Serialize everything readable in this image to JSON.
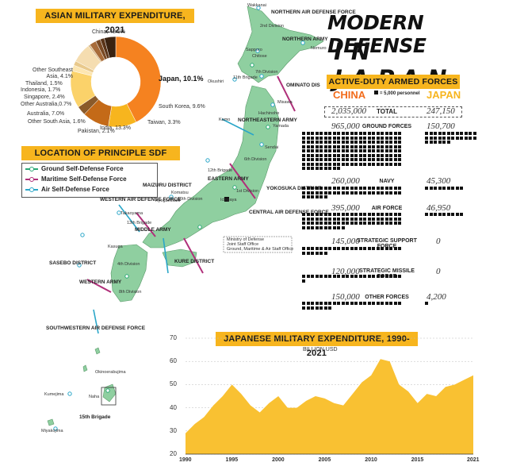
{
  "title": {
    "line1": "MODERN DEFENSE",
    "line2": "IN JAPAN"
  },
  "asian_expenditure": {
    "header": "ASIAN MILITARY EXPENDITURE, 2021",
    "labels": [
      {
        "text": "China, 42.5%",
        "color": "#f58220"
      },
      {
        "text": "Japan, 10.1%",
        "color": "#f7b51e"
      },
      {
        "text": "South Korea, 9.6%",
        "color": "#c46a18"
      },
      {
        "text": "Taiwan, 3.3%",
        "color": "#8a5a2a"
      },
      {
        "text": "India, 13.3%",
        "color": "#fbd26a"
      },
      {
        "text": "Pakistan, 2.1%",
        "color": "#fde6b0"
      },
      {
        "text": "Other South Asia, 1.6%",
        "color": "#e9c98c"
      },
      {
        "text": "Australia, 7.0%",
        "color": "#f5ddb0"
      },
      {
        "text": "Other Australia,0.7%",
        "color": "#d9b98a"
      },
      {
        "text": "Singapore, 2.4%",
        "color": "#a86c3a"
      },
      {
        "text": "Indonesia, 1.7%",
        "color": "#7a4a24"
      },
      {
        "text": "Thailand, 1.5%",
        "color": "#5a3418"
      },
      {
        "text": "Other Southeast Asia, 4.1%",
        "color": "#3a2210"
      }
    ]
  },
  "sdf": {
    "header": "LOCATION OF PRINCIPLE SDF UNITS",
    "legend": [
      {
        "label": "Ground Self-Defense Force",
        "color": "#2aa876"
      },
      {
        "label": "Maritime Self-Defense Force",
        "color": "#b0307a"
      },
      {
        "label": "Air Self-Defense Force",
        "color": "#2aa6c8"
      }
    ],
    "map_labels": {
      "northern_air": "NORTHERN AIR DEFENSE FORCE",
      "northern_army": "NORTHERN ARMY",
      "ominato": "OMINATO DIS",
      "northeastern_army": "NORTHEASTERN ARMY",
      "eastern_army": "EASTERN ARMY",
      "yokosuka": "YOKOSUKA DISTRICT",
      "central_air": "CENTRAL AIR DEFENSE FORCE",
      "maizuru": "MAIZURU DISTRICT",
      "western_air": "WESTERN AIR DEFENSE FORCE",
      "middle_army": "MIDDLE ARMY",
      "kure": "KURE DISTRICT",
      "sasebo": "SASEBO DISTRICT",
      "western_army": "WESTERN ARMY",
      "southwestern_air": "SOUTHWESTERN AIR DEFENSE FORCE",
      "brigade15": "15th Brigade",
      "hq_note1": "Ministry of Defense",
      "hq_note2": "Joint Staff Office",
      "hq_note3": "Ground, Maritime & Air Staff Office"
    },
    "places": [
      "Wakkanai",
      "2nd Division",
      "Nemuro",
      "Sapporo",
      "Chitose",
      "7th Division",
      "Okushiri",
      "11th Brigade",
      "Misawa",
      "Hachinohe",
      "Kamo",
      "Yamada",
      "Sendai",
      "6th Division",
      "12th Brigade",
      "1st Division",
      "Ichigaya",
      "Komatsu",
      "10th Division",
      "Kyogamisaki",
      "Takaoyama",
      "13th Brigade",
      "Kasuga",
      "4th Division",
      "8th Division",
      "Naha",
      "Okinoerabujima",
      "Kumejima",
      "Miyakojima"
    ]
  },
  "forces": {
    "header": "ACTIVE-DUTY ARMED FORCES",
    "legend": "= 5,000 personnel",
    "china_label": "CHINA",
    "japan_label": "JAPAN",
    "rows": [
      {
        "label": "TOTAL",
        "china": "2,035,000",
        "japan": "247,150"
      },
      {
        "label": "GROUND FORCES",
        "china": "965,000",
        "japan": "150,700"
      },
      {
        "label": "NAVY",
        "china": "260,000",
        "japan": "45,300"
      },
      {
        "label": "AIR FORCE",
        "china": "395,000",
        "japan": "46,950"
      },
      {
        "label": "STRATEGIC SUPPORT FORCE",
        "china": "145,000",
        "japan": "0"
      },
      {
        "label": "STRATEGIC MISSILE FORCE",
        "china": "120,000",
        "japan": "0"
      },
      {
        "label": "OTHER FORCES",
        "china": "150,000",
        "japan": "4,200"
      }
    ]
  },
  "chart_data": [
    {
      "type": "pie",
      "title": "ASIAN MILITARY EXPENDITURE, 2021",
      "categories": [
        "China",
        "Japan",
        "South Korea",
        "Taiwan",
        "India",
        "Pakistan",
        "Other South Asia",
        "Australia",
        "Other Australia",
        "Singapore",
        "Indonesia",
        "Thailand",
        "Other Southeast Asia"
      ],
      "values": [
        42.5,
        10.1,
        9.6,
        3.3,
        13.3,
        2.1,
        1.6,
        7.0,
        0.7,
        2.4,
        1.7,
        1.5,
        4.1
      ],
      "colors": [
        "#f58220",
        "#f7b51e",
        "#c46a18",
        "#8a5a2a",
        "#fbd26a",
        "#fde6b0",
        "#e9c98c",
        "#f5ddb0",
        "#d9b98a",
        "#a86c3a",
        "#7a4a24",
        "#5a3418",
        "#3a2210"
      ]
    },
    {
      "type": "area",
      "title": "JAPANESE MILITARY EXPENDITURE, 1990-2021",
      "ylabel": "BILLION USD",
      "x": [
        1990,
        1991,
        1992,
        1993,
        1994,
        1995,
        1996,
        1997,
        1998,
        1999,
        2000,
        2001,
        2002,
        2003,
        2004,
        2005,
        2006,
        2007,
        2008,
        2009,
        2010,
        2011,
        2012,
        2013,
        2014,
        2015,
        2016,
        2017,
        2018,
        2019,
        2020,
        2021
      ],
      "values": [
        29,
        33,
        36,
        41,
        45,
        50,
        46,
        41,
        38,
        42,
        45,
        40,
        40,
        43,
        45,
        44,
        42,
        41,
        46,
        51,
        54,
        61,
        60,
        50,
        47,
        42,
        46,
        45,
        49,
        50,
        52,
        54
      ],
      "ylim": [
        20,
        70
      ],
      "yticks": [
        20,
        30,
        40,
        50,
        60,
        70
      ],
      "xticks": [
        1990,
        1995,
        2000,
        2005,
        2010,
        2015,
        2021
      ],
      "fill": "#f9c132"
    }
  ]
}
